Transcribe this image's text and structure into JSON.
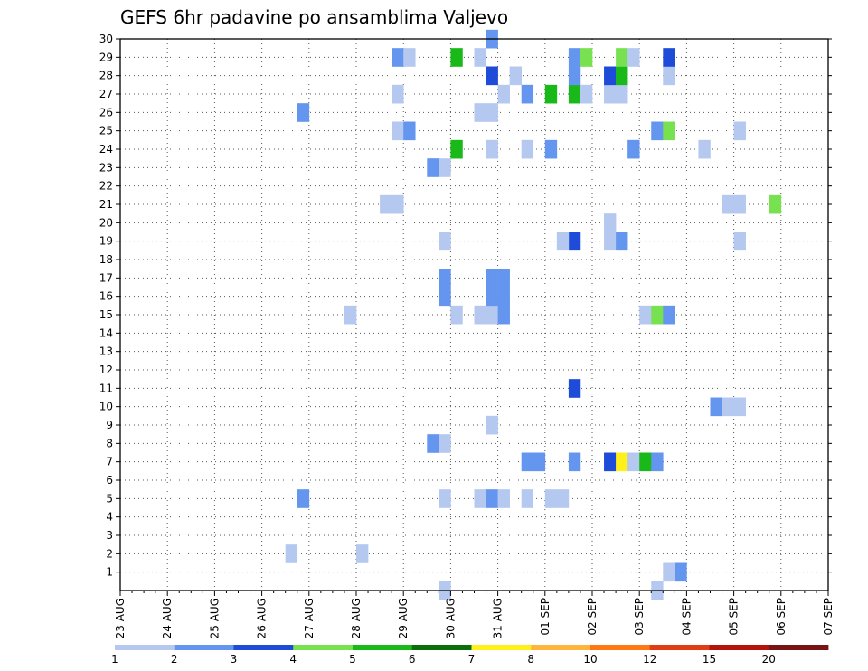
{
  "chart_data": {
    "type": "heatmap",
    "title": "GEFS 6hr padavine po ansamblima Valjevo",
    "xlabel": "",
    "ylabel": "",
    "x_tick_labels": [
      "23 AUG",
      "24 AUG",
      "25 AUG",
      "26 AUG",
      "27 AUG",
      "28 AUG",
      "29 AUG",
      "30 AUG",
      "31 AUG",
      "01 SEP",
      "02 SEP",
      "03 SEP",
      "04 SEP",
      "05 SEP",
      "06 SEP",
      "07 SEP"
    ],
    "y_tick_labels": [
      "1",
      "2",
      "3",
      "4",
      "5",
      "6",
      "7",
      "8",
      "9",
      "10",
      "11",
      "12",
      "13",
      "14",
      "15",
      "16",
      "17",
      "18",
      "19",
      "20",
      "21",
      "22",
      "23",
      "24",
      "25",
      "26",
      "27",
      "28",
      "29",
      "30"
    ],
    "grid": true,
    "time_step_hours": 6,
    "steps_per_day": 4,
    "levels": [
      "1",
      "2",
      "3",
      "4",
      "5",
      "6",
      "7",
      "8",
      "10",
      "12",
      "15",
      "20"
    ],
    "colors": [
      "#b4c8f0",
      "#6496f0",
      "#1e4bd7",
      "#78e150",
      "#19b919",
      "#0a6e0a",
      "#fff019",
      "#ffb43c",
      "#ff7814",
      "#e13c14",
      "#b4140a",
      "#781414"
    ],
    "cells": [
      {
        "step": 14,
        "member": 2,
        "level": 0
      },
      {
        "step": 20,
        "member": 2,
        "level": 0
      },
      {
        "step": 15,
        "member": 5,
        "level": 1
      },
      {
        "step": 27,
        "member": 5,
        "level": 0
      },
      {
        "step": 30,
        "member": 5,
        "level": 0
      },
      {
        "step": 31,
        "member": 5,
        "level": 1
      },
      {
        "step": 32,
        "member": 5,
        "level": 0
      },
      {
        "step": 34,
        "member": 5,
        "level": 0
      },
      {
        "step": 36,
        "member": 5,
        "level": 0
      },
      {
        "step": 37,
        "member": 5,
        "level": 0
      },
      {
        "step": 34,
        "member": 7,
        "level": 1
      },
      {
        "step": 35,
        "member": 7,
        "level": 1
      },
      {
        "step": 38,
        "member": 7,
        "level": 1
      },
      {
        "step": 41,
        "member": 7,
        "level": 2
      },
      {
        "step": 42,
        "member": 7,
        "level": 6
      },
      {
        "step": 43,
        "member": 7,
        "level": 0
      },
      {
        "step": 44,
        "member": 7,
        "level": 4
      },
      {
        "step": 45,
        "member": 7,
        "level": 1
      },
      {
        "step": 26,
        "member": 8,
        "level": 1
      },
      {
        "step": 27,
        "member": 8,
        "level": 0
      },
      {
        "step": 31,
        "member": 9,
        "level": 0
      },
      {
        "step": 50,
        "member": 10,
        "level": 1
      },
      {
        "step": 51,
        "member": 10,
        "level": 0
      },
      {
        "step": 52,
        "member": 10,
        "level": 0
      },
      {
        "step": 38,
        "member": 11,
        "level": 2
      },
      {
        "step": 19,
        "member": 15,
        "level": 0
      },
      {
        "step": 28,
        "member": 15,
        "level": 0
      },
      {
        "step": 30,
        "member": 15,
        "level": 0
      },
      {
        "step": 31,
        "member": 15,
        "level": 0
      },
      {
        "step": 32,
        "member": 15,
        "level": 1
      },
      {
        "step": 44,
        "member": 15,
        "level": 0
      },
      {
        "step": 45,
        "member": 15,
        "level": 3
      },
      {
        "step": 46,
        "member": 15,
        "level": 1
      },
      {
        "step": 27,
        "member": 16,
        "level": 1
      },
      {
        "step": 31,
        "member": 16,
        "level": 1
      },
      {
        "step": 32,
        "member": 16,
        "level": 1
      },
      {
        "step": 27,
        "member": 17,
        "level": 1
      },
      {
        "step": 31,
        "member": 17,
        "level": 1
      },
      {
        "step": 32,
        "member": 17,
        "level": 1
      },
      {
        "step": 27,
        "member": 19,
        "level": 0
      },
      {
        "step": 38,
        "member": 19,
        "level": 2
      },
      {
        "step": 37,
        "member": 19,
        "level": 0
      },
      {
        "step": 41,
        "member": 19,
        "level": 0
      },
      {
        "step": 42,
        "member": 19,
        "level": 1
      },
      {
        "step": 52,
        "member": 19,
        "level": 0
      },
      {
        "step": 41,
        "member": 20,
        "level": 0
      },
      {
        "step": 22,
        "member": 21,
        "level": 0
      },
      {
        "step": 23,
        "member": 21,
        "level": 0
      },
      {
        "step": 51,
        "member": 21,
        "level": 0
      },
      {
        "step": 52,
        "member": 21,
        "level": 0
      },
      {
        "step": 55,
        "member": 21,
        "level": 3
      },
      {
        "step": 26,
        "member": 23,
        "level": 1
      },
      {
        "step": 27,
        "member": 23,
        "level": 0
      },
      {
        "step": 28,
        "member": 24,
        "level": 4
      },
      {
        "step": 31,
        "member": 24,
        "level": 0
      },
      {
        "step": 34,
        "member": 24,
        "level": 0
      },
      {
        "step": 36,
        "member": 24,
        "level": 1
      },
      {
        "step": 43,
        "member": 24,
        "level": 1
      },
      {
        "step": 49,
        "member": 24,
        "level": 0
      },
      {
        "step": 23,
        "member": 25,
        "level": 0
      },
      {
        "step": 24,
        "member": 25,
        "level": 1
      },
      {
        "step": 45,
        "member": 25,
        "level": 1
      },
      {
        "step": 46,
        "member": 25,
        "level": 3
      },
      {
        "step": 52,
        "member": 25,
        "level": 0
      },
      {
        "step": 15,
        "member": 26,
        "level": 1
      },
      {
        "step": 30,
        "member": 26,
        "level": 0
      },
      {
        "step": 31,
        "member": 26,
        "level": 0
      },
      {
        "step": 23,
        "member": 27,
        "level": 0
      },
      {
        "step": 32,
        "member": 27,
        "level": 0
      },
      {
        "step": 34,
        "member": 27,
        "level": 1
      },
      {
        "step": 36,
        "member": 27,
        "level": 4
      },
      {
        "step": 38,
        "member": 27,
        "level": 4
      },
      {
        "step": 39,
        "member": 27,
        "level": 0
      },
      {
        "step": 41,
        "member": 27,
        "level": 0
      },
      {
        "step": 42,
        "member": 27,
        "level": 0
      },
      {
        "step": 31,
        "member": 28,
        "level": 2
      },
      {
        "step": 33,
        "member": 28,
        "level": 0
      },
      {
        "step": 38,
        "member": 28,
        "level": 1
      },
      {
        "step": 41,
        "member": 28,
        "level": 2
      },
      {
        "step": 42,
        "member": 28,
        "level": 4
      },
      {
        "step": 46,
        "member": 28,
        "level": 0
      },
      {
        "step": 23,
        "member": 29,
        "level": 1
      },
      {
        "step": 24,
        "member": 29,
        "level": 0
      },
      {
        "step": 28,
        "member": 29,
        "level": 4
      },
      {
        "step": 30,
        "member": 29,
        "level": 0
      },
      {
        "step": 38,
        "member": 29,
        "level": 1
      },
      {
        "step": 39,
        "member": 29,
        "level": 3
      },
      {
        "step": 42,
        "member": 29,
        "level": 3
      },
      {
        "step": 43,
        "member": 29,
        "level": 0
      },
      {
        "step": 46,
        "member": 29,
        "level": 2
      },
      {
        "step": 31,
        "member": 30,
        "level": 1
      },
      {
        "step": 27,
        "member": 0,
        "level": 0
      },
      {
        "step": 45,
        "member": 0,
        "level": 0
      },
      {
        "step": 46,
        "member": 1,
        "level": 0
      },
      {
        "step": 47,
        "member": 1,
        "level": 1
      }
    ]
  }
}
